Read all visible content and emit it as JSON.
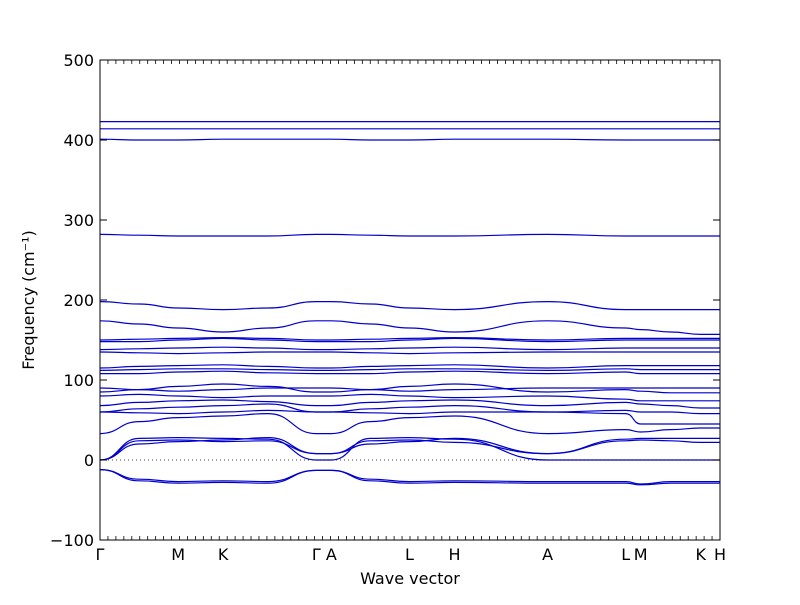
{
  "chart_data": {
    "type": "line",
    "title": "",
    "xlabel": "Wave vector",
    "ylabel": "Frequency (cm⁻¹)",
    "ylim": [
      -100,
      500
    ],
    "yticks": [
      -100,
      0,
      100,
      200,
      300,
      400,
      500
    ],
    "xlim": [
      0,
      10.32
    ],
    "line_color": "#0000cc",
    "zero_line": {
      "y": 0,
      "style": "dotted"
    },
    "grid": false,
    "kpoints": [
      {
        "label": "Γ",
        "x": 0.0
      },
      {
        "label": "M",
        "x": 1.3
      },
      {
        "label": "K",
        "x": 2.05
      },
      {
        "label": "Γ",
        "x": 3.6
      },
      {
        "label": "A",
        "x": 3.85
      },
      {
        "label": "L",
        "x": 5.15
      },
      {
        "label": "H",
        "x": 5.9
      },
      {
        "label": "A",
        "x": 7.45
      },
      {
        "label": "L",
        "x": 8.75
      },
      {
        "label": "M",
        "x": 9.0
      },
      {
        "label": "K",
        "x": 10.0
      },
      {
        "label": "H",
        "x": 10.32
      }
    ],
    "series": [
      {
        "values": [
          -12,
          -24,
          -27,
          -26,
          -27,
          -13,
          -13,
          -24,
          -27,
          -26,
          -27,
          -27,
          -30,
          -27,
          -27,
          -27
        ]
      },
      {
        "values": [
          -12,
          -26,
          -29,
          -28,
          -29,
          -13,
          -13,
          -26,
          -29,
          -28,
          -29,
          -29,
          -31,
          -29,
          -29,
          -29
        ]
      },
      {
        "values": [
          0,
          27,
          28,
          27,
          26,
          0,
          0,
          27,
          28,
          26,
          0,
          0,
          0,
          0,
          0,
          0
        ]
      },
      {
        "values": [
          0,
          24,
          25,
          23,
          24,
          8,
          8,
          24,
          25,
          22,
          8,
          26,
          27,
          27,
          27,
          27
        ]
      },
      {
        "values": [
          0,
          20,
          23,
          25,
          28,
          8,
          8,
          20,
          23,
          27,
          8,
          24,
          25,
          24,
          22,
          22
        ]
      },
      {
        "values": [
          33,
          48,
          53,
          55,
          58,
          33,
          33,
          48,
          53,
          55,
          33,
          38,
          35,
          38,
          40,
          40
        ]
      },
      {
        "values": [
          60,
          59,
          58,
          60,
          62,
          60,
          60,
          59,
          58,
          60,
          60,
          58,
          45,
          45,
          45,
          45
        ]
      },
      {
        "values": [
          60,
          64,
          66,
          68,
          70,
          60,
          60,
          64,
          66,
          68,
          60,
          62,
          60,
          60,
          58,
          58
        ]
      },
      {
        "values": [
          68,
          72,
          74,
          75,
          73,
          68,
          68,
          72,
          74,
          75,
          68,
          72,
          70,
          68,
          65,
          65
        ]
      },
      {
        "values": [
          80,
          82,
          80,
          78,
          80,
          80,
          80,
          82,
          80,
          78,
          80,
          76,
          74,
          74,
          74,
          74
        ]
      },
      {
        "values": [
          85,
          88,
          92,
          95,
          92,
          85,
          85,
          88,
          92,
          95,
          85,
          88,
          86,
          84,
          84,
          84
        ]
      },
      {
        "values": [
          90,
          88,
          86,
          88,
          90,
          90,
          90,
          88,
          86,
          88,
          90,
          90,
          90,
          90,
          90,
          90
        ]
      },
      {
        "values": [
          108,
          108,
          110,
          111,
          109,
          108,
          108,
          108,
          110,
          111,
          108,
          110,
          108,
          108,
          108,
          108
        ]
      },
      {
        "values": [
          112,
          113,
          114,
          114,
          113,
          112,
          112,
          113,
          114,
          114,
          112,
          114,
          113,
          113,
          113,
          113
        ]
      },
      {
        "values": [
          115,
          117,
          118,
          119,
          117,
          115,
          115,
          117,
          118,
          119,
          115,
          118,
          118,
          118,
          118,
          118
        ]
      },
      {
        "values": [
          135,
          134,
          133,
          134,
          135,
          135,
          135,
          134,
          133,
          134,
          135,
          135,
          135,
          135,
          135,
          135
        ]
      },
      {
        "values": [
          138,
          139,
          140,
          141,
          140,
          138,
          138,
          139,
          140,
          141,
          138,
          140,
          140,
          140,
          140,
          140
        ]
      },
      {
        "values": [
          148,
          148,
          150,
          152,
          150,
          148,
          148,
          148,
          150,
          152,
          148,
          150,
          150,
          150,
          150,
          150
        ]
      },
      {
        "values": [
          150,
          151,
          152,
          153,
          152,
          150,
          150,
          151,
          152,
          153,
          150,
          152,
          152,
          152,
          152,
          152
        ]
      },
      {
        "values": [
          174,
          170,
          165,
          160,
          165,
          174,
          174,
          170,
          165,
          160,
          174,
          165,
          163,
          160,
          157,
          157
        ]
      },
      {
        "values": [
          198,
          195,
          190,
          188,
          190,
          198,
          198,
          195,
          190,
          188,
          198,
          188,
          188,
          188,
          188,
          188
        ]
      },
      {
        "values": [
          282,
          281,
          280,
          280,
          280,
          282,
          282,
          281,
          280,
          280,
          282,
          280,
          280,
          280,
          280,
          280
        ]
      },
      {
        "values": [
          401,
          400,
          400,
          401,
          401,
          401,
          401,
          400,
          400,
          401,
          401,
          400,
          400,
          400,
          400,
          400
        ]
      },
      {
        "values": [
          414,
          414,
          414,
          414,
          414,
          414,
          414,
          414,
          414,
          414,
          414,
          414,
          414,
          414,
          414,
          414
        ]
      },
      {
        "values": [
          423,
          423,
          423,
          423,
          423,
          423,
          423,
          423,
          423,
          423,
          423,
          423,
          423,
          423,
          423,
          423
        ]
      }
    ],
    "series_x": [
      0.0,
      0.65,
      1.3,
      2.05,
      2.8,
      3.6,
      3.85,
      4.5,
      5.15,
      5.9,
      7.45,
      8.75,
      9.0,
      9.5,
      10.0,
      10.32
    ]
  }
}
